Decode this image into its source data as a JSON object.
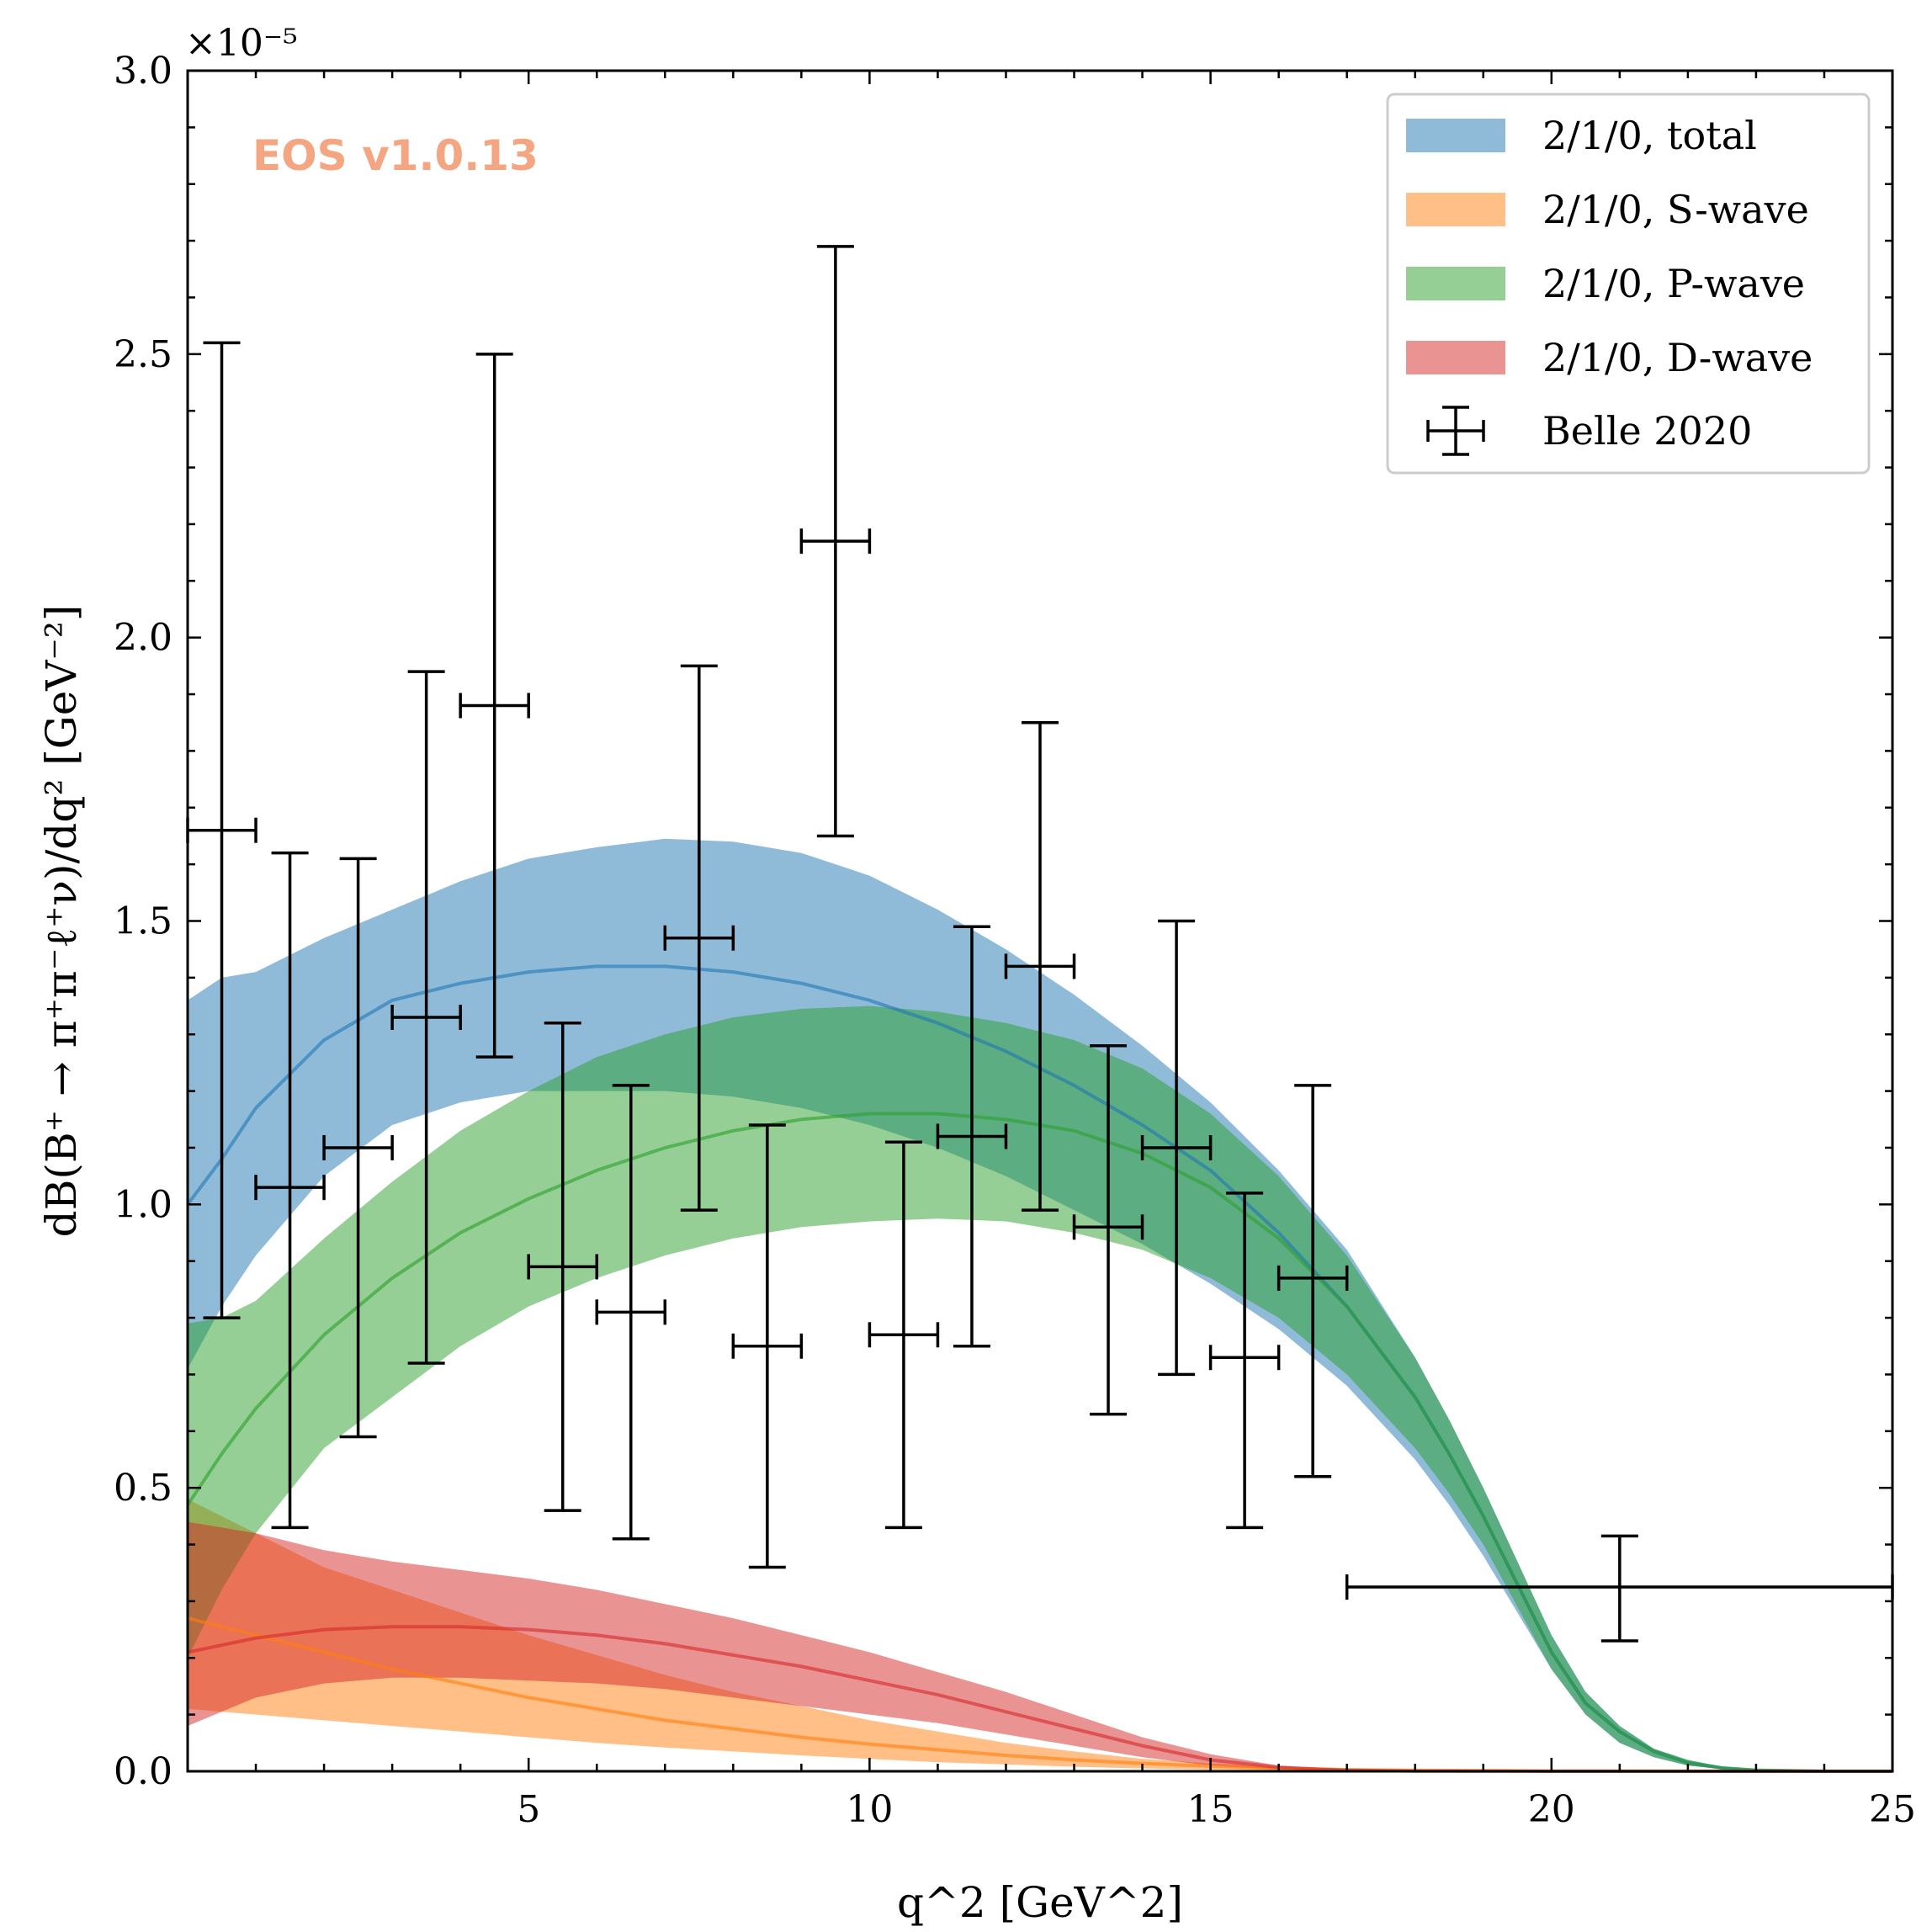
{
  "chart_data": {
    "type": "line",
    "xlabel": "q^2 [GeV^2]",
    "ylabel": "dB(B⁺ → π⁺π⁻ℓ⁺ν)/dq² [GeV⁻²]",
    "y_multiplier": "×10⁻⁵",
    "xlim": [
      0,
      25
    ],
    "ylim": [
      0,
      3.0
    ],
    "x_ticks": [
      5,
      10,
      15,
      20,
      25
    ],
    "x_tick_labels": [
      "5",
      "10",
      "15",
      "20",
      "25"
    ],
    "y_ticks": [
      0,
      0.5,
      1.0,
      1.5,
      2.0,
      2.5,
      3.0
    ],
    "y_tick_labels": [
      "0.0",
      "0.5",
      "1.0",
      "1.5",
      "2.0",
      "2.5",
      "3.0"
    ],
    "grid": false,
    "legend_position": "top-right",
    "watermark": "EOS v1.0.13",
    "watermark_color": "#f4a582",
    "series": [
      {
        "name": "2/1/0, total",
        "color": "#1f77b4",
        "x": [
          0.0,
          0.5,
          1.0,
          2.0,
          3.0,
          4.0,
          5.0,
          6.0,
          7.0,
          8.0,
          9.0,
          10.0,
          11.0,
          12.0,
          13.0,
          14.0,
          15.0,
          16.0,
          17.0,
          18.0,
          18.5,
          19.0,
          19.5,
          20.0,
          20.5,
          21.0,
          21.5,
          22.0,
          22.5,
          23.0,
          24.0,
          25.0
        ],
        "central": [
          1.0,
          1.08,
          1.17,
          1.29,
          1.36,
          1.39,
          1.41,
          1.42,
          1.42,
          1.41,
          1.39,
          1.36,
          1.32,
          1.27,
          1.21,
          1.14,
          1.06,
          0.95,
          0.82,
          0.66,
          0.56,
          0.45,
          0.33,
          0.21,
          0.12,
          0.07,
          0.035,
          0.015,
          0.006,
          0.002,
          0.0,
          0.0
        ],
        "upper": [
          1.36,
          1.4,
          1.41,
          1.47,
          1.52,
          1.57,
          1.61,
          1.63,
          1.645,
          1.64,
          1.62,
          1.58,
          1.52,
          1.45,
          1.37,
          1.28,
          1.18,
          1.06,
          0.92,
          0.73,
          0.62,
          0.5,
          0.37,
          0.24,
          0.14,
          0.08,
          0.04,
          0.02,
          0.008,
          0.003,
          0.0,
          0.0
        ],
        "lower": [
          0.71,
          0.82,
          0.91,
          1.05,
          1.14,
          1.18,
          1.2,
          1.2,
          1.2,
          1.19,
          1.17,
          1.14,
          1.1,
          1.05,
          0.99,
          0.93,
          0.86,
          0.78,
          0.68,
          0.55,
          0.47,
          0.38,
          0.28,
          0.18,
          0.1,
          0.05,
          0.025,
          0.01,
          0.004,
          0.001,
          0.0,
          0.0
        ]
      },
      {
        "name": "2/1/0, S-wave",
        "color": "#ff7f0e",
        "x": [
          0.0,
          1.0,
          2.0,
          3.0,
          4.0,
          5.0,
          6.0,
          7.0,
          8.0,
          9.0,
          10.0,
          11.0,
          12.0,
          13.0,
          14.0,
          15.0,
          16.0,
          17.0,
          18.0,
          20.0,
          22.0,
          25.0
        ],
        "central": [
          0.27,
          0.24,
          0.21,
          0.18,
          0.155,
          0.13,
          0.11,
          0.09,
          0.075,
          0.06,
          0.048,
          0.038,
          0.028,
          0.02,
          0.014,
          0.009,
          0.005,
          0.003,
          0.002,
          0.0005,
          0.0001,
          0.0
        ],
        "upper": [
          0.48,
          0.42,
          0.36,
          0.32,
          0.28,
          0.24,
          0.205,
          0.17,
          0.14,
          0.115,
          0.09,
          0.07,
          0.05,
          0.035,
          0.022,
          0.014,
          0.008,
          0.005,
          0.003,
          0.001,
          0.0002,
          0.0
        ],
        "lower": [
          0.11,
          0.1,
          0.09,
          0.08,
          0.07,
          0.06,
          0.05,
          0.042,
          0.035,
          0.028,
          0.022,
          0.016,
          0.012,
          0.008,
          0.005,
          0.003,
          0.0015,
          0.001,
          0.0005,
          0.0001,
          0.0,
          0.0
        ]
      },
      {
        "name": "2/1/0, P-wave",
        "color": "#2ca02c",
        "x": [
          0.0,
          0.5,
          1.0,
          2.0,
          3.0,
          4.0,
          5.0,
          6.0,
          7.0,
          8.0,
          9.0,
          10.0,
          11.0,
          12.0,
          13.0,
          14.0,
          15.0,
          16.0,
          17.0,
          18.0,
          18.5,
          19.0,
          19.5,
          20.0,
          20.5,
          21.0,
          21.5,
          22.0,
          22.5,
          23.0,
          24.0,
          25.0
        ],
        "central": [
          0.47,
          0.56,
          0.64,
          0.77,
          0.87,
          0.95,
          1.01,
          1.06,
          1.1,
          1.13,
          1.15,
          1.16,
          1.16,
          1.15,
          1.13,
          1.09,
          1.03,
          0.94,
          0.82,
          0.66,
          0.56,
          0.45,
          0.33,
          0.21,
          0.12,
          0.07,
          0.035,
          0.015,
          0.006,
          0.002,
          0.0,
          0.0
        ],
        "upper": [
          0.79,
          0.8,
          0.83,
          0.94,
          1.04,
          1.13,
          1.2,
          1.26,
          1.3,
          1.33,
          1.345,
          1.35,
          1.34,
          1.32,
          1.29,
          1.24,
          1.16,
          1.05,
          0.91,
          0.73,
          0.62,
          0.5,
          0.37,
          0.24,
          0.14,
          0.08,
          0.04,
          0.02,
          0.008,
          0.003,
          0.0,
          0.0
        ],
        "lower": [
          0.2,
          0.32,
          0.42,
          0.57,
          0.66,
          0.75,
          0.82,
          0.87,
          0.91,
          0.94,
          0.96,
          0.97,
          0.975,
          0.97,
          0.95,
          0.92,
          0.87,
          0.8,
          0.7,
          0.57,
          0.49,
          0.4,
          0.29,
          0.18,
          0.1,
          0.05,
          0.025,
          0.01,
          0.004,
          0.001,
          0.0,
          0.0
        ]
      },
      {
        "name": "2/1/0, D-wave",
        "color": "#d62728",
        "x": [
          0.0,
          1.0,
          2.0,
          3.0,
          4.0,
          5.0,
          6.0,
          7.0,
          8.0,
          9.0,
          10.0,
          11.0,
          12.0,
          13.0,
          14.0,
          15.0,
          16.0,
          17.0,
          18.0,
          20.0,
          25.0
        ],
        "central": [
          0.21,
          0.235,
          0.25,
          0.255,
          0.255,
          0.25,
          0.24,
          0.225,
          0.205,
          0.185,
          0.16,
          0.135,
          0.105,
          0.075,
          0.045,
          0.02,
          0.007,
          0.002,
          0.0005,
          0.0,
          0.0
        ],
        "upper": [
          0.44,
          0.42,
          0.39,
          0.37,
          0.355,
          0.34,
          0.32,
          0.295,
          0.27,
          0.24,
          0.21,
          0.175,
          0.14,
          0.1,
          0.06,
          0.03,
          0.01,
          0.003,
          0.001,
          0.0,
          0.0
        ],
        "lower": [
          0.08,
          0.13,
          0.155,
          0.165,
          0.165,
          0.16,
          0.155,
          0.145,
          0.13,
          0.115,
          0.1,
          0.085,
          0.065,
          0.045,
          0.025,
          0.01,
          0.003,
          0.001,
          0.0,
          0.0,
          0.0
        ]
      }
    ],
    "data_series": {
      "name": "Belle 2020",
      "color": "#000000",
      "points": [
        {
          "x": 0.5,
          "y": 1.66,
          "xerr_low": 0.5,
          "xerr_high": 0.5,
          "y_low": 0.8,
          "y_high": 2.52
        },
        {
          "x": 1.5,
          "y": 1.03,
          "xerr_low": 0.5,
          "xerr_high": 0.5,
          "y_low": 0.43,
          "y_high": 1.62
        },
        {
          "x": 2.5,
          "y": 1.1,
          "xerr_low": 0.5,
          "xerr_high": 0.5,
          "y_low": 0.59,
          "y_high": 1.61
        },
        {
          "x": 3.5,
          "y": 1.33,
          "xerr_low": 0.5,
          "xerr_high": 0.5,
          "y_low": 0.72,
          "y_high": 1.94
        },
        {
          "x": 4.5,
          "y": 1.88,
          "xerr_low": 0.5,
          "xerr_high": 0.5,
          "y_low": 1.26,
          "y_high": 2.5
        },
        {
          "x": 5.5,
          "y": 0.89,
          "xerr_low": 0.5,
          "xerr_high": 0.5,
          "y_low": 0.46,
          "y_high": 1.32
        },
        {
          "x": 6.5,
          "y": 0.81,
          "xerr_low": 0.5,
          "xerr_high": 0.5,
          "y_low": 0.41,
          "y_high": 1.21
        },
        {
          "x": 7.5,
          "y": 1.47,
          "xerr_low": 0.5,
          "xerr_high": 0.5,
          "y_low": 0.99,
          "y_high": 1.95
        },
        {
          "x": 8.5,
          "y": 0.75,
          "xerr_low": 0.5,
          "xerr_high": 0.5,
          "y_low": 0.36,
          "y_high": 1.14
        },
        {
          "x": 9.5,
          "y": 2.17,
          "xerr_low": 0.5,
          "xerr_high": 0.5,
          "y_low": 1.65,
          "y_high": 2.69
        },
        {
          "x": 10.5,
          "y": 0.77,
          "xerr_low": 0.5,
          "xerr_high": 0.5,
          "y_low": 0.43,
          "y_high": 1.11
        },
        {
          "x": 11.5,
          "y": 1.12,
          "xerr_low": 0.5,
          "xerr_high": 0.5,
          "y_low": 0.75,
          "y_high": 1.49
        },
        {
          "x": 12.5,
          "y": 1.42,
          "xerr_low": 0.5,
          "xerr_high": 0.5,
          "y_low": 0.99,
          "y_high": 1.85
        },
        {
          "x": 13.5,
          "y": 0.96,
          "xerr_low": 0.5,
          "xerr_high": 0.5,
          "y_low": 0.63,
          "y_high": 1.28
        },
        {
          "x": 14.5,
          "y": 1.1,
          "xerr_low": 0.5,
          "xerr_high": 0.5,
          "y_low": 0.7,
          "y_high": 1.5
        },
        {
          "x": 15.5,
          "y": 0.73,
          "xerr_low": 0.5,
          "xerr_high": 0.5,
          "y_low": 0.43,
          "y_high": 1.02
        },
        {
          "x": 16.5,
          "y": 0.87,
          "xerr_low": 0.5,
          "xerr_high": 0.5,
          "y_low": 0.52,
          "y_high": 1.21
        },
        {
          "x": 21.0,
          "y": 0.325,
          "xerr_low": 4.0,
          "xerr_high": 4.0,
          "y_low": 0.23,
          "y_high": 0.415
        }
      ]
    }
  }
}
